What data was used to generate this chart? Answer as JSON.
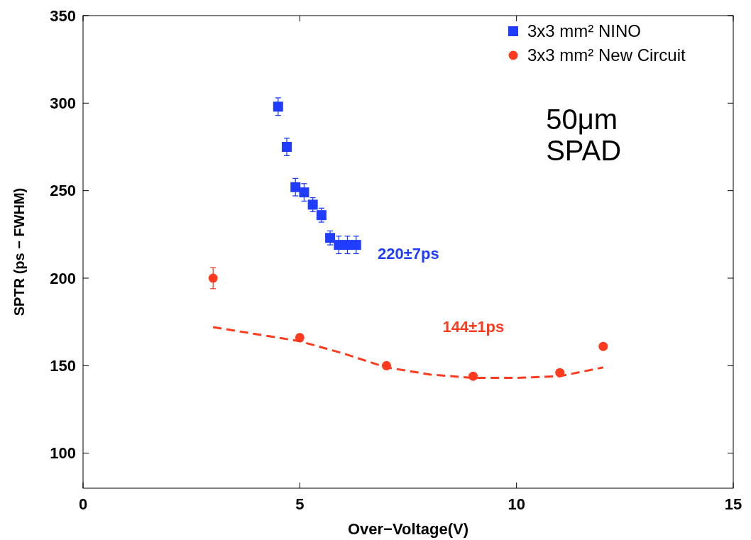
{
  "chart_data": {
    "type": "scatter",
    "xlabel": "Over−Voltage(V)",
    "ylabel": "SPTR (ps − FWHM)",
    "xlim": [
      0,
      15
    ],
    "xticks": [
      0,
      5,
      10,
      15
    ],
    "ylim": [
      80,
      350
    ],
    "yticks": [
      100,
      150,
      200,
      250,
      300,
      350
    ],
    "grid": false,
    "legend": "top right",
    "series": [
      {
        "name": "3x3 mm² NINO",
        "color": "#1f3cff",
        "marker": "square",
        "x": [
          4.5,
          4.7,
          4.9,
          5.1,
          5.3,
          5.5,
          5.7,
          5.9,
          6.1,
          6.3
        ],
        "values": [
          298,
          275,
          252,
          249,
          242,
          236,
          223,
          219,
          219,
          219
        ],
        "errors": [
          5,
          5,
          5,
          5,
          4,
          4,
          4,
          5,
          5,
          5
        ]
      },
      {
        "name": "3x3 mm² New Circuit",
        "color": "#ff3a1f",
        "marker": "circle",
        "x": [
          3,
          5,
          7,
          9,
          11,
          12
        ],
        "values": [
          200,
          166,
          150,
          144,
          146,
          161
        ],
        "errors": [
          6,
          2,
          null,
          null,
          null,
          null
        ]
      },
      {
        "type": "line",
        "color": "#ff3a1f",
        "line_style": "dashed",
        "marker": "none",
        "x": [
          3,
          4,
          5,
          6,
          7,
          8,
          9,
          10,
          11,
          12
        ],
        "values": [
          172,
          168,
          164,
          157,
          149,
          145,
          143,
          143,
          144,
          149
        ]
      }
    ],
    "annotations": [
      "220±7ps",
      "144±1ps",
      "50μm\nSPAD"
    ]
  }
}
